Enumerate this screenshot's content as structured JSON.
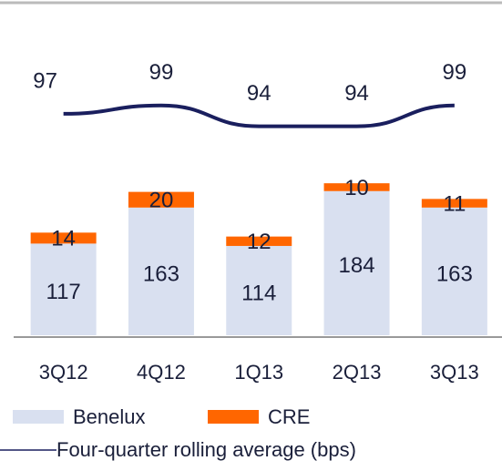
{
  "chart_data": {
    "type": "bar",
    "stacked": true,
    "categories": [
      "3Q12",
      "4Q12",
      "1Q13",
      "2Q13",
      "3Q13"
    ],
    "series": [
      {
        "name": "Benelux",
        "color": "#d9e0f0",
        "values": [
          117,
          163,
          114,
          184,
          163
        ]
      },
      {
        "name": "CRE",
        "color": "#ff6600",
        "values": [
          14,
          20,
          12,
          10,
          11
        ]
      },
      {
        "name": "Four-quarter rolling average (bps)",
        "color": "#1a1f5e",
        "type": "line",
        "axis": "y2",
        "values": [
          97,
          99,
          94,
          94,
          99
        ]
      }
    ],
    "ylim": [
      0,
      400
    ],
    "y2lim": [
      44,
      119
    ]
  }
}
